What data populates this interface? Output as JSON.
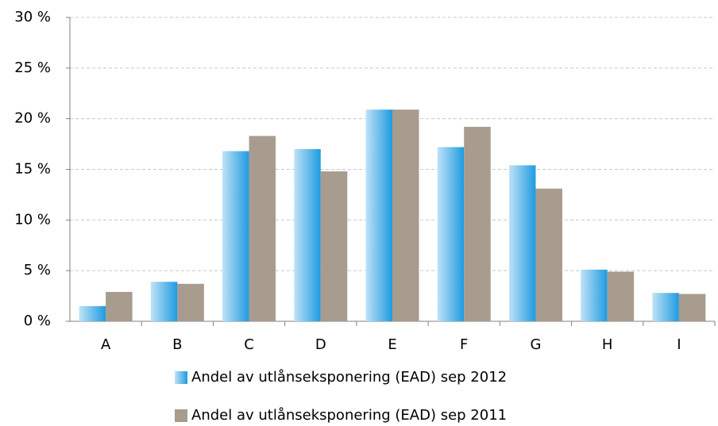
{
  "chart_data": {
    "type": "bar",
    "categories": [
      "A",
      "B",
      "C",
      "D",
      "E",
      "F",
      "G",
      "H",
      "I"
    ],
    "series": [
      {
        "name": "Andel av utlånseksponering (EAD) sep 2012",
        "color": "#1e9be0",
        "gradient": true,
        "values": [
          1.5,
          3.9,
          16.8,
          17.0,
          20.9,
          17.2,
          15.4,
          5.1,
          2.8
        ]
      },
      {
        "name": "Andel av utlånseksponering (EAD) sep 2011",
        "color": "#a89c8f",
        "values": [
          2.9,
          3.7,
          18.3,
          14.8,
          20.9,
          19.2,
          13.1,
          4.9,
          2.7
        ]
      }
    ],
    "ylim": [
      0,
      30
    ],
    "yticks": [
      {
        "value": 0,
        "label": "0 %"
      },
      {
        "value": 5,
        "label": "5 %"
      },
      {
        "value": 10,
        "label": "10 %"
      },
      {
        "value": 15,
        "label": "15 %"
      },
      {
        "value": 20,
        "label": "20 %"
      },
      {
        "value": 25,
        "label": "25 %"
      },
      {
        "value": 30,
        "label": "30 %"
      }
    ],
    "grid": true,
    "legend": "bottom"
  }
}
